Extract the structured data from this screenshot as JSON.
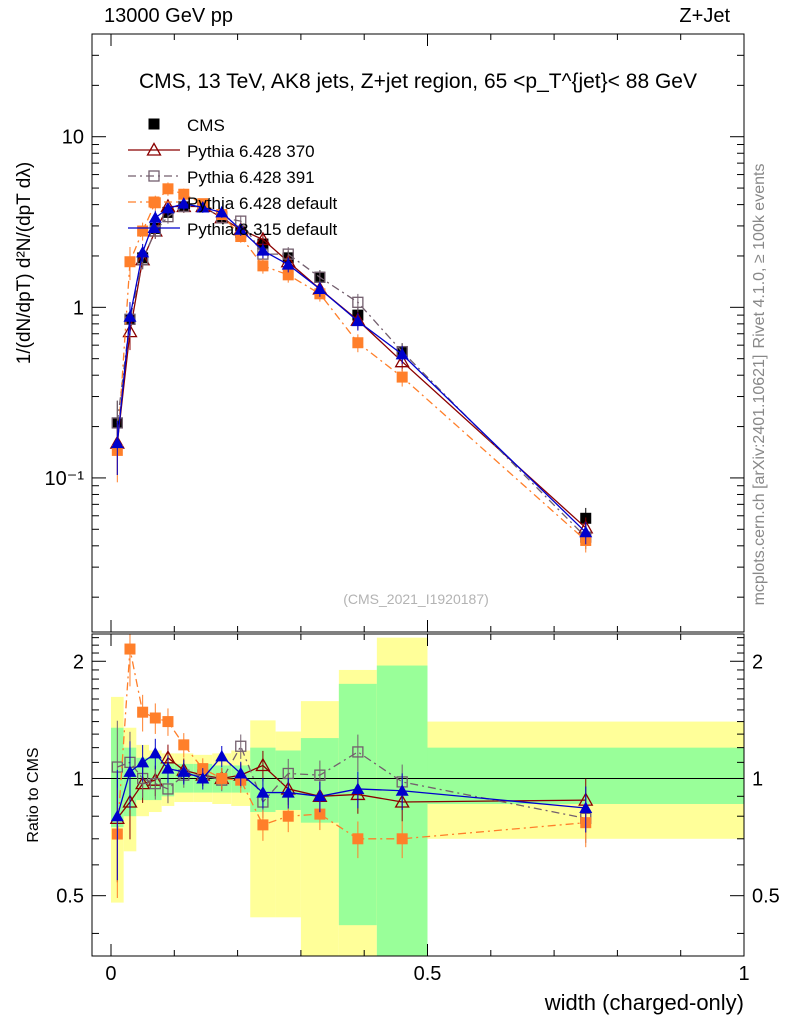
{
  "header": {
    "energy": "13000 GeV pp",
    "process": "Z+Jet",
    "rivet": "Rivet 4.1.0, ≥ 100k events",
    "mcplots": "mcplots.cern.ch [arXiv:2401.10621]"
  },
  "colors": {
    "cms": "#000000",
    "p6_370": "#8b0000",
    "p6_391": "#735f6e",
    "p6_default": "#ff7f2a",
    "p8_default": "#0000cc",
    "band_inner": "#99ff99",
    "band_outer": "#ffff99"
  },
  "chart_data": {
    "type": "line",
    "title": "CMS, 13 TeV, AK8 jets, Z+jet region, 65 <p_T^{jet}< 88 GeV",
    "analysis_id": "(CMS_2021_I1920187)",
    "xlabel": "width (charged-only)",
    "ylabel_main": "1/(dN/dpT) d²N/(dpT dλ)",
    "ylabel_ratio": "Ratio to CMS",
    "xlim": [
      -0.03,
      1.0
    ],
    "ylim_main": [
      0.0125,
      40
    ],
    "ylim_ratio": [
      0.35,
      2.35
    ],
    "yscale_main": "log",
    "yscale_ratio": "log",
    "x_ticks": [
      0,
      0.5,
      1
    ],
    "main_y_ticks": [
      {
        "v": 10,
        "label": "10"
      },
      {
        "v": 1,
        "label": "1"
      },
      {
        "v": 0.1,
        "label": "10⁻¹"
      }
    ],
    "ratio_y_ticks": [
      {
        "v": 2,
        "label": "2"
      },
      {
        "v": 1,
        "label": "1"
      },
      {
        "v": 0.5,
        "label": "0.5"
      }
    ],
    "bins": [
      0,
      0.02,
      0.04,
      0.06,
      0.08,
      0.1,
      0.13,
      0.16,
      0.19,
      0.22,
      0.26,
      0.3,
      0.36,
      0.42,
      0.5,
      1.0
    ],
    "x": [
      0.01,
      0.03,
      0.05,
      0.07,
      0.09,
      0.115,
      0.145,
      0.175,
      0.205,
      0.24,
      0.28,
      0.33,
      0.39,
      0.46,
      0.75
    ],
    "ratio_band_inner": [
      [
        0.75,
        1.35
      ],
      [
        0.8,
        1.2
      ],
      [
        0.88,
        1.13
      ],
      [
        0.88,
        1.13
      ],
      [
        0.9,
        1.1
      ],
      [
        0.92,
        1.09
      ],
      [
        0.92,
        1.09
      ],
      [
        0.92,
        1.08
      ],
      [
        0.92,
        1.08
      ],
      [
        0.82,
        1.2
      ],
      [
        0.83,
        1.18
      ],
      [
        0.77,
        1.27
      ],
      [
        0.42,
        1.75
      ],
      [
        0.25,
        1.95
      ],
      [
        0.86,
        1.2
      ]
    ],
    "ratio_band_outer": [
      [
        0.48,
        1.62
      ],
      [
        0.65,
        1.35
      ],
      [
        0.8,
        1.22
      ],
      [
        0.82,
        1.18
      ],
      [
        0.85,
        1.16
      ],
      [
        0.87,
        1.16
      ],
      [
        0.87,
        1.15
      ],
      [
        0.86,
        1.16
      ],
      [
        0.85,
        1.18
      ],
      [
        0.44,
        1.41
      ],
      [
        0.44,
        1.32
      ],
      [
        0.33,
        1.58
      ],
      [
        0.33,
        1.9
      ],
      [
        0.33,
        2.3
      ],
      [
        0.7,
        1.4
      ]
    ],
    "series": [
      {
        "name": "CMS",
        "key": "cms",
        "style": "data",
        "marker": "square-filled",
        "values": [
          0.21,
          0.85,
          1.95,
          2.9,
          3.6,
          3.9,
          3.95,
          3.4,
          2.75,
          2.35,
          1.95,
          1.5,
          0.9,
          0.55,
          0.058
        ]
      },
      {
        "name": "Pythia 6.428 370",
        "key": "p6_370",
        "dash": "",
        "marker": "triangle-open",
        "values": [
          0.16,
          0.72,
          1.9,
          2.8,
          3.9,
          3.9,
          3.9,
          3.35,
          2.85,
          2.5,
          1.85,
          1.28,
          0.84,
          0.48,
          0.051
        ],
        "ratio": [
          0.79,
          0.87,
          0.97,
          0.99,
          1.13,
          1.05,
          1.02,
          1.0,
          1.02,
          1.08,
          0.94,
          0.9,
          0.91,
          0.87,
          0.88
        ]
      },
      {
        "name": "Pythia 6.428 391",
        "key": "p6_391",
        "dash": "8,4,2,4",
        "marker": "square-open",
        "values": [
          0.21,
          0.85,
          1.9,
          2.8,
          3.4,
          3.9,
          3.9,
          3.35,
          3.2,
          2.05,
          2.05,
          1.5,
          1.07,
          0.55,
          0.045
        ],
        "ratio": [
          1.07,
          1.1,
          1.0,
          0.97,
          0.94,
          1.02,
          1.02,
          0.99,
          1.21,
          0.87,
          1.03,
          1.02,
          1.17,
          0.98,
          0.79
        ]
      },
      {
        "name": "Pythia 6.428 default",
        "key": "p6_default",
        "dash": "8,4,2,4",
        "marker": "square-filled",
        "values": [
          0.145,
          1.85,
          2.8,
          4.1,
          4.95,
          4.6,
          4.05,
          3.5,
          2.6,
          1.75,
          1.55,
          1.2,
          0.62,
          0.39,
          0.043
        ],
        "ratio": [
          0.72,
          2.15,
          1.48,
          1.43,
          1.4,
          1.22,
          1.06,
          1.0,
          0.99,
          0.76,
          0.8,
          0.81,
          0.7,
          0.7,
          0.77
        ]
      },
      {
        "name": "Pythia 8.315 default",
        "key": "p8_default",
        "dash": "",
        "marker": "triangle-filled",
        "values": [
          0.16,
          0.88,
          2.1,
          3.35,
          3.8,
          4.05,
          3.85,
          3.6,
          2.85,
          2.15,
          1.78,
          1.28,
          0.83,
          0.53,
          0.048
        ],
        "ratio": [
          0.8,
          1.04,
          1.1,
          1.16,
          1.06,
          1.04,
          1.0,
          1.14,
          1.03,
          0.92,
          0.92,
          0.9,
          0.94,
          0.93,
          0.84
        ]
      }
    ]
  }
}
